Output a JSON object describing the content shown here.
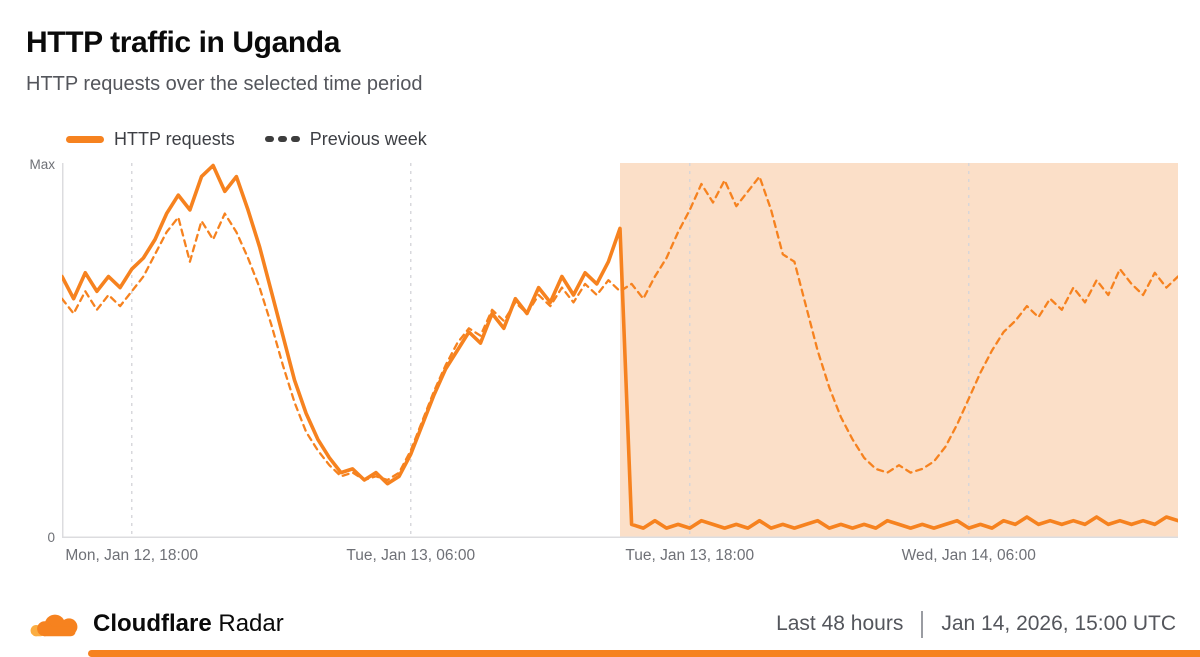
{
  "page": {
    "title": "HTTP traffic in Uganda",
    "subtitle": "HTTP requests over the selected time period"
  },
  "legend": {
    "http_requests_label": "HTTP requests",
    "previous_week_label": "Previous week"
  },
  "footer": {
    "brand_bold": "Cloudflare",
    "brand_regular": "Radar",
    "range_label": "Last 48 hours",
    "timestamp": "Jan 14, 2026, 15:00 UTC"
  },
  "colors": {
    "accent": "#F6821F",
    "accent_light": "#FBAD41",
    "highlight_fill": "#FBDFC8",
    "grid": "#d6d6da",
    "axis": "#dcdcdf",
    "legend_dash": "#3d3d3d"
  },
  "chart_data": {
    "type": "line",
    "title": "HTTP traffic in Uganda",
    "subtitle": "HTTP requests over the selected time period",
    "x_unit": "hours since Jan 12 15:00 UTC (48-hour window ending Jan 14, 2026, 15:00 UTC)",
    "x_range": [
      0,
      48
    ],
    "y_axis": {
      "min": 0,
      "max": 1,
      "min_label": "0",
      "max_label": "Max"
    },
    "grid": "vertical-dashed",
    "legend_position": "top-left",
    "highlight_region": {
      "t_start": 24,
      "t_end": 48,
      "note": "shaded outage period where HTTP requests drop to near zero"
    },
    "x_ticks": [
      {
        "t": 3,
        "label": "Mon, Jan 12, 18:00"
      },
      {
        "t": 15,
        "label": "Tue, Jan 13, 06:00"
      },
      {
        "t": 27,
        "label": "Tue, Jan 13, 18:00"
      },
      {
        "t": 39,
        "label": "Wed, Jan 14, 06:00"
      }
    ],
    "series": [
      {
        "name": "HTTP requests",
        "style": "solid",
        "color": "#F6821F",
        "t_start": 0,
        "t_step": 0.5,
        "values": [
          0.7,
          0.64,
          0.71,
          0.66,
          0.7,
          0.67,
          0.72,
          0.75,
          0.8,
          0.87,
          0.92,
          0.88,
          0.97,
          1.0,
          0.93,
          0.97,
          0.88,
          0.78,
          0.66,
          0.54,
          0.42,
          0.33,
          0.26,
          0.21,
          0.17,
          0.18,
          0.15,
          0.17,
          0.14,
          0.16,
          0.22,
          0.3,
          0.38,
          0.45,
          0.5,
          0.55,
          0.52,
          0.6,
          0.56,
          0.64,
          0.6,
          0.67,
          0.63,
          0.7,
          0.65,
          0.71,
          0.68,
          0.74,
          0.83,
          0.03,
          0.02,
          0.04,
          0.02,
          0.03,
          0.02,
          0.04,
          0.03,
          0.02,
          0.03,
          0.02,
          0.04,
          0.02,
          0.03,
          0.02,
          0.03,
          0.04,
          0.02,
          0.03,
          0.02,
          0.03,
          0.02,
          0.04,
          0.03,
          0.02,
          0.03,
          0.02,
          0.03,
          0.04,
          0.02,
          0.03,
          0.02,
          0.04,
          0.03,
          0.05,
          0.03,
          0.04,
          0.03,
          0.04,
          0.03,
          0.05,
          0.03,
          0.04,
          0.03,
          0.04,
          0.03,
          0.05,
          0.04
        ]
      },
      {
        "name": "Previous week",
        "style": "dashed",
        "color": "#F6821F",
        "t_start": 0,
        "t_step": 0.5,
        "values": [
          0.64,
          0.6,
          0.66,
          0.61,
          0.65,
          0.62,
          0.66,
          0.7,
          0.76,
          0.82,
          0.86,
          0.74,
          0.85,
          0.8,
          0.87,
          0.82,
          0.75,
          0.67,
          0.57,
          0.46,
          0.36,
          0.28,
          0.23,
          0.19,
          0.16,
          0.17,
          0.15,
          0.16,
          0.15,
          0.17,
          0.23,
          0.31,
          0.39,
          0.46,
          0.52,
          0.56,
          0.54,
          0.61,
          0.58,
          0.63,
          0.6,
          0.65,
          0.62,
          0.67,
          0.63,
          0.68,
          0.65,
          0.69,
          0.66,
          0.68,
          0.64,
          0.7,
          0.75,
          0.82,
          0.88,
          0.95,
          0.9,
          0.96,
          0.89,
          0.93,
          0.97,
          0.88,
          0.76,
          0.74,
          0.62,
          0.5,
          0.4,
          0.32,
          0.26,
          0.21,
          0.18,
          0.17,
          0.19,
          0.17,
          0.18,
          0.2,
          0.24,
          0.3,
          0.37,
          0.44,
          0.5,
          0.55,
          0.58,
          0.62,
          0.59,
          0.64,
          0.61,
          0.67,
          0.63,
          0.69,
          0.65,
          0.72,
          0.68,
          0.65,
          0.71,
          0.67,
          0.7
        ]
      }
    ]
  }
}
